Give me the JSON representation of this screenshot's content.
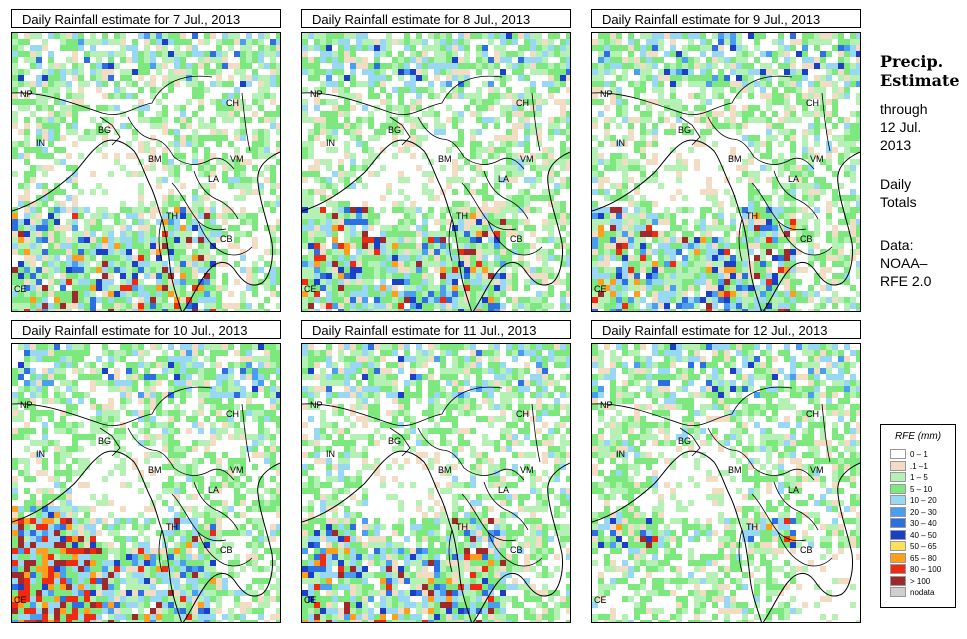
{
  "panels": [
    {
      "title": "Daily Rainfall estimate for  7 Jul., 2013",
      "seed": 7
    },
    {
      "title": "Daily Rainfall estimate for  8 Jul., 2013",
      "seed": 8
    },
    {
      "title": "Daily Rainfall estimate for  9 Jul., 2013",
      "seed": 9
    },
    {
      "title": "Daily Rainfall estimate for  10 Jul., 2013",
      "seed": 10
    },
    {
      "title": "Daily Rainfall estimate for  11 Jul., 2013",
      "seed": 11
    },
    {
      "title": "Daily Rainfall estimate for  12 Jul., 2013",
      "seed": 12
    }
  ],
  "country_labels": [
    "NP",
    "CH",
    "IN",
    "BG",
    "BM",
    "VM",
    "LA",
    "TH",
    "CB",
    "CE"
  ],
  "side": {
    "title_line1": "Precip.",
    "title_line2": "Estimate",
    "through": "through",
    "date_line1": "12 Jul.",
    "date_line2": "2013",
    "totals_line1": "Daily",
    "totals_line2": "Totals",
    "data_line1": "Data:",
    "data_line2": "NOAA–",
    "data_line3": "RFE 2.0"
  },
  "legend": {
    "title": "RFE (mm)",
    "items": [
      {
        "label": "0 – 1",
        "color": "#ffffff"
      },
      {
        "label": ".1 –1",
        "color": "#f3dcc4"
      },
      {
        "label": "1 – 5",
        "color": "#b5f0b5"
      },
      {
        "label": "5 – 10",
        "color": "#7de87d"
      },
      {
        "label": "10 – 20",
        "color": "#99d8f5"
      },
      {
        "label": "20 – 30",
        "color": "#4a9ef0"
      },
      {
        "label": "30 – 40",
        "color": "#2d6fe0"
      },
      {
        "label": "40 – 50",
        "color": "#1c3fc8"
      },
      {
        "label": "50 – 65",
        "color": "#ffe05a"
      },
      {
        "label": "65 – 80",
        "color": "#ff9e1c"
      },
      {
        "label": "80 – 100",
        "color": "#ee2a10"
      },
      {
        "label": "> 100",
        "color": "#a0282a"
      },
      {
        "label": "nodata",
        "color": "#cfcfcf"
      }
    ]
  }
}
